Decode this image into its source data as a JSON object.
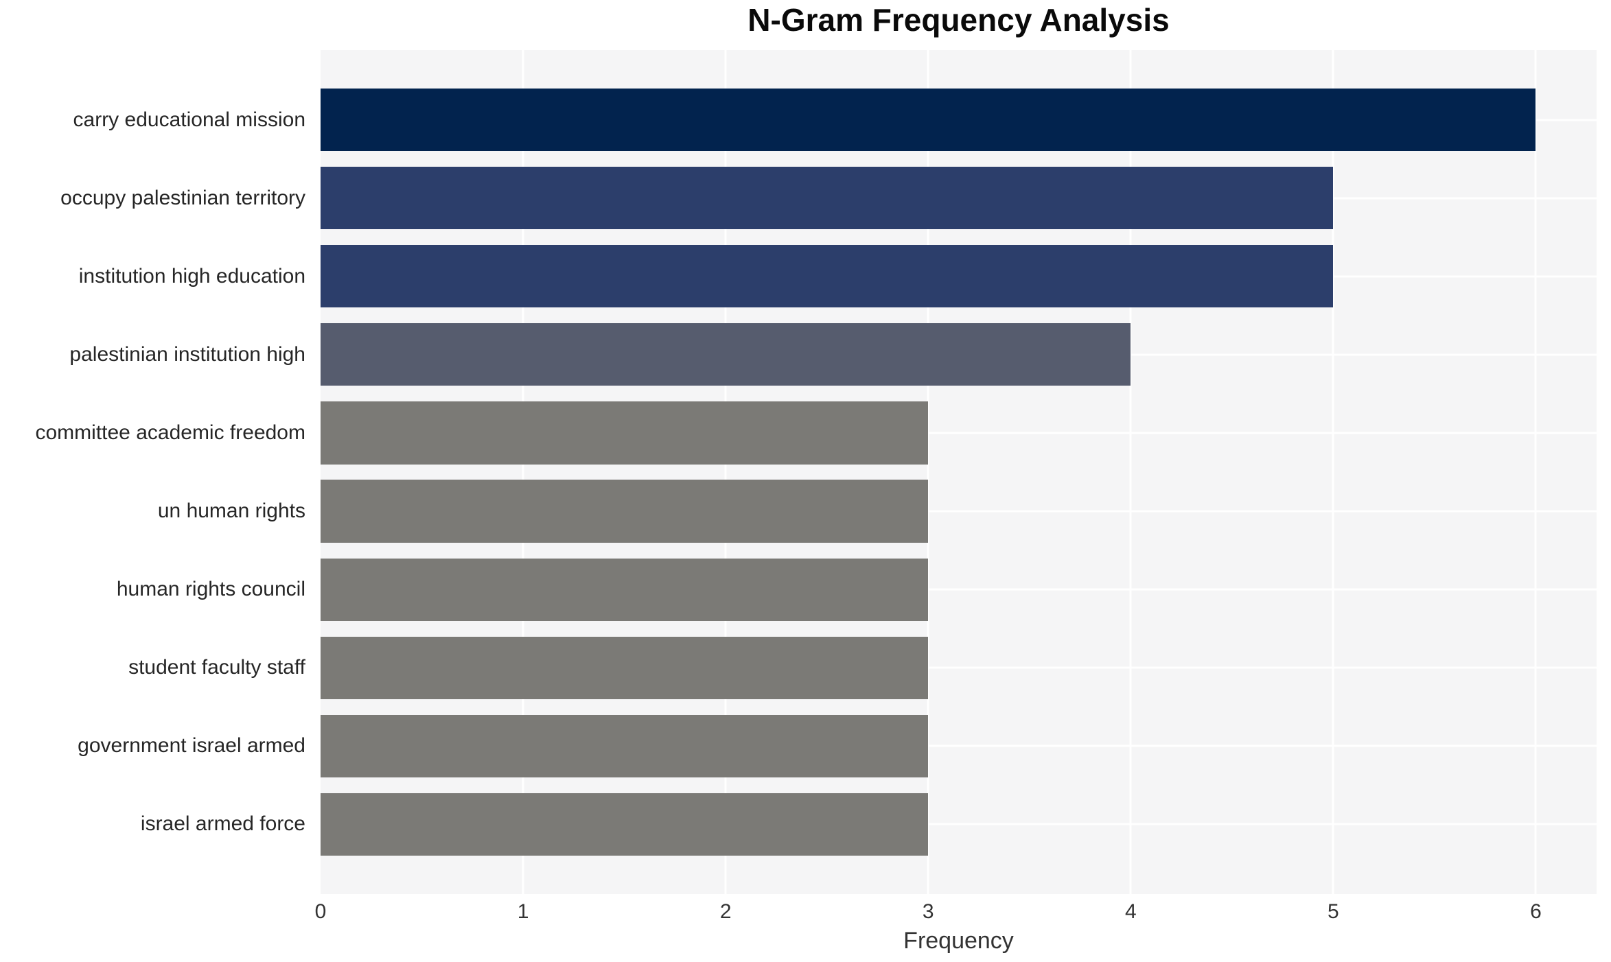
{
  "chart_data": {
    "type": "bar",
    "orientation": "horizontal",
    "title": "N-Gram Frequency Analysis",
    "xlabel": "Frequency",
    "ylabel": "",
    "categories": [
      "carry educational mission",
      "occupy palestinian territory",
      "institution high education",
      "palestinian institution high",
      "committee academic freedom",
      "un human rights",
      "human rights council",
      "student faculty staff",
      "government israel armed",
      "israel armed force"
    ],
    "values": [
      6,
      5,
      5,
      4,
      3,
      3,
      3,
      3,
      3,
      3
    ],
    "bar_colors": [
      "#02234e",
      "#2c3e6b",
      "#2c3e6b",
      "#565c6e",
      "#7b7a76",
      "#7b7a76",
      "#7b7a76",
      "#7b7a76",
      "#7b7a76",
      "#7b7a76"
    ],
    "x_ticks": [
      0,
      1,
      2,
      3,
      4,
      5,
      6
    ],
    "xlim": [
      0,
      6.3
    ],
    "grid": true,
    "legend": "none",
    "plot_bg_color": "#f5f5f6",
    "grid_color": "#ffffff"
  }
}
